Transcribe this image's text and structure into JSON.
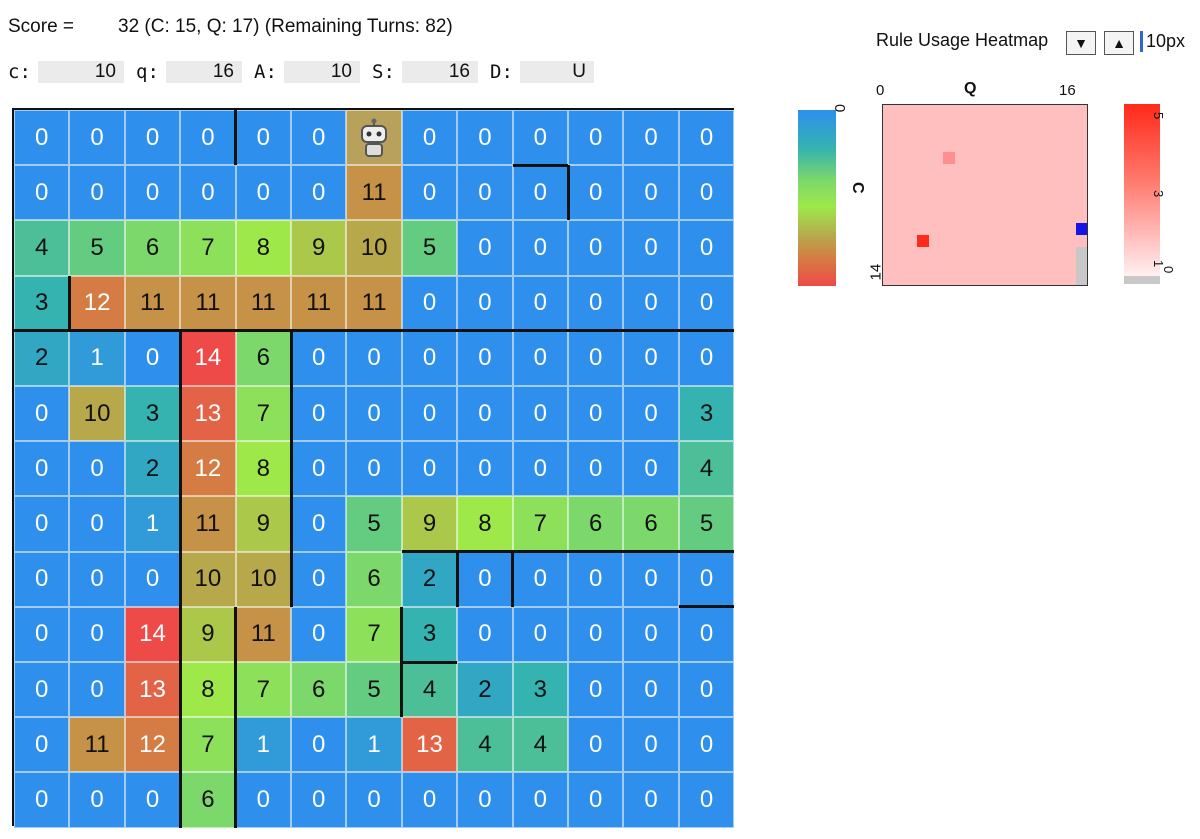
{
  "score": {
    "label": "Score =",
    "value": "32 (C: 15, Q: 17) (Remaining Turns: 82)"
  },
  "params": [
    {
      "label": "c:",
      "value": "10"
    },
    {
      "label": "q:",
      "value": "16"
    },
    {
      "label": "A:",
      "value": "10"
    },
    {
      "label": "S:",
      "value": "16"
    },
    {
      "label": "D:",
      "value": "U"
    }
  ],
  "board": {
    "rows": [
      [
        "0",
        "0",
        "0",
        "0",
        "0",
        "0",
        "",
        "0",
        "0",
        "0",
        "0",
        "0",
        "0"
      ],
      [
        "0",
        "0",
        "0",
        "0",
        "0",
        "0",
        "11",
        "0",
        "0",
        "0",
        "0",
        "0",
        "0"
      ],
      [
        "4",
        "5",
        "6",
        "7",
        "8",
        "9",
        "10",
        "5",
        "0",
        "0",
        "0",
        "0",
        "0"
      ],
      [
        "3",
        "12",
        "11",
        "11",
        "11",
        "11",
        "11",
        "0",
        "0",
        "0",
        "0",
        "0",
        "0"
      ],
      [
        "2",
        "1",
        "0",
        "14",
        "6",
        "0",
        "0",
        "0",
        "0",
        "0",
        "0",
        "0",
        "0"
      ],
      [
        "0",
        "10",
        "3",
        "13",
        "7",
        "0",
        "0",
        "0",
        "0",
        "0",
        "0",
        "0",
        "3"
      ],
      [
        "0",
        "0",
        "2",
        "12",
        "8",
        "0",
        "0",
        "0",
        "0",
        "0",
        "0",
        "0",
        "4"
      ],
      [
        "0",
        "0",
        "1",
        "11",
        "9",
        "0",
        "5",
        "9",
        "8",
        "7",
        "6",
        "6",
        "5"
      ],
      [
        "0",
        "0",
        "0",
        "10",
        "10",
        "0",
        "6",
        "2",
        "0",
        "0",
        "0",
        "0",
        "0"
      ],
      [
        "0",
        "0",
        "14",
        "9",
        "11",
        "0",
        "7",
        "3",
        "0",
        "0",
        "0",
        "0",
        "0"
      ],
      [
        "0",
        "0",
        "13",
        "8",
        "7",
        "6",
        "5",
        "4",
        "2",
        "3",
        "0",
        "0",
        "0"
      ],
      [
        "0",
        "11",
        "12",
        "7",
        "1",
        "0",
        "1",
        "13",
        "4",
        "4",
        "0",
        "0",
        "0"
      ],
      [
        "0",
        "0",
        "0",
        "6",
        "0",
        "0",
        "0",
        "0",
        "0",
        "0",
        "0",
        "0",
        "0"
      ]
    ],
    "robot_icon": "robot-icon"
  },
  "colorbar": {
    "top_label": "0",
    "axis_label": "C",
    "bottom_label": "14"
  },
  "heatmap": {
    "title": "Rule Usage Heatmap",
    "down_button": "▼",
    "up_button": "▲",
    "size_value": "10px",
    "x_axis": {
      "min": "0",
      "label": "Q",
      "max": "16"
    },
    "scale_ticks": [
      "5",
      "3",
      "1",
      "0"
    ]
  },
  "colors": {
    "water": "#2e8fec",
    "low": "#3f9de0",
    "mid": "#9fe04b",
    "high": "#ee4a48",
    "heat_bg": "#ffbfbf",
    "heat_hot": "#ff2a1a"
  }
}
